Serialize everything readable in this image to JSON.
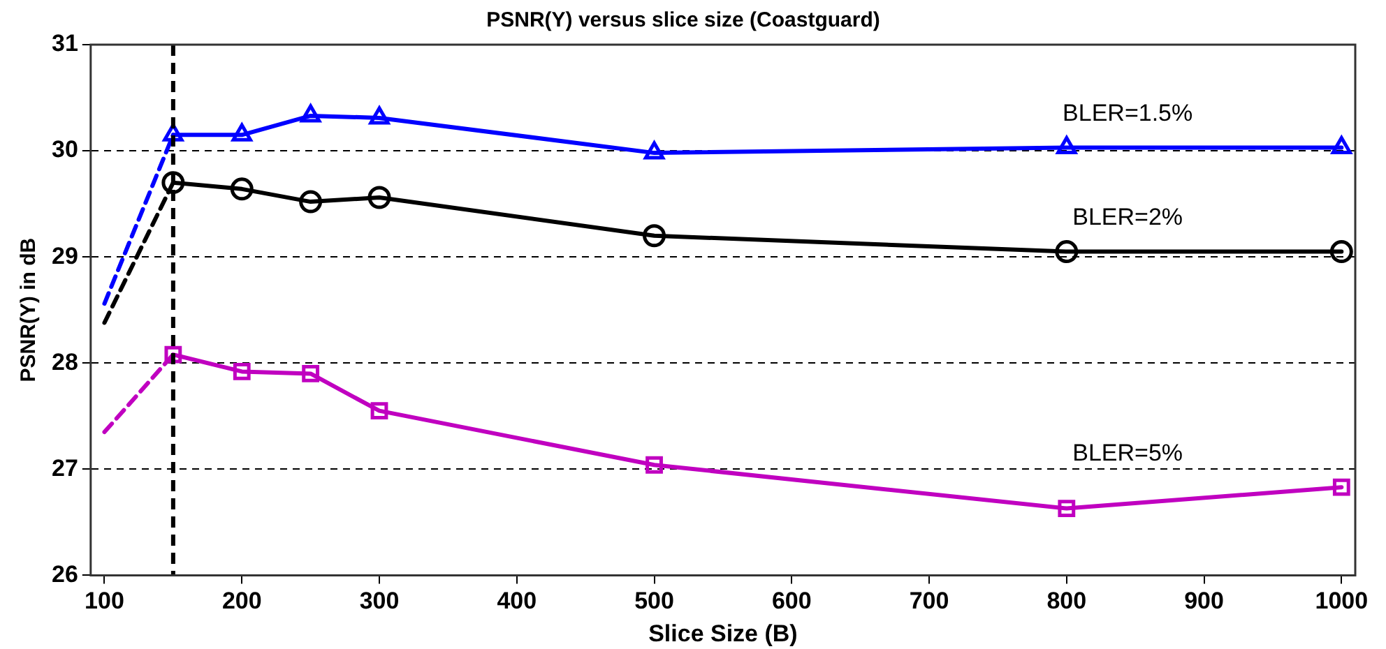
{
  "chart_data": {
    "type": "line",
    "title": "PSNR(Y) versus slice size (Coastguard)",
    "xlabel": "Slice Size (B)",
    "ylabel": "PSNR(Y) in dB",
    "xlim": [
      90,
      1010
    ],
    "xticks": [
      100,
      200,
      300,
      400,
      500,
      600,
      700,
      800,
      900,
      1000
    ],
    "ylim": [
      26,
      31
    ],
    "yticks": [
      26,
      27,
      28,
      29,
      30,
      31
    ],
    "grid": "y",
    "legend": false,
    "series": [
      {
        "color": "#0000ff",
        "x": [
          100,
          150
        ],
        "values": [
          28.56,
          30.15
        ],
        "line_style": "dashed"
      },
      {
        "color": "#0000ff",
        "x": [
          150,
          200,
          250,
          300,
          500,
          800,
          1000
        ],
        "values": [
          30.15,
          30.15,
          30.33,
          30.31,
          29.98,
          30.03,
          30.03
        ],
        "line_style": "solid",
        "marker": "triangle"
      },
      {
        "color": "#000000",
        "x": [
          100,
          150
        ],
        "values": [
          28.38,
          29.7
        ],
        "line_style": "dashed"
      },
      {
        "color": "#000000",
        "x": [
          150,
          200,
          250,
          300,
          500,
          800,
          1000
        ],
        "values": [
          29.7,
          29.64,
          29.52,
          29.56,
          29.2,
          29.05,
          29.05
        ],
        "line_style": "solid",
        "marker": "circle"
      },
      {
        "color": "#c000c0",
        "x": [
          100,
          150
        ],
        "values": [
          27.35,
          28.08
        ],
        "line_style": "dashed"
      },
      {
        "color": "#c000c0",
        "x": [
          150,
          200,
          250,
          300,
          500,
          800,
          1000
        ],
        "values": [
          28.08,
          27.92,
          27.9,
          27.55,
          27.04,
          26.63,
          26.83
        ],
        "line_style": "solid",
        "marker": "square"
      }
    ],
    "ref_lines": [
      {
        "axis": "x",
        "value": 150,
        "color": "#000000",
        "line_style": "dashed"
      }
    ],
    "annotations": [
      "BLER=1.5%",
      "BLER=2%",
      "BLER=5%"
    ]
  }
}
